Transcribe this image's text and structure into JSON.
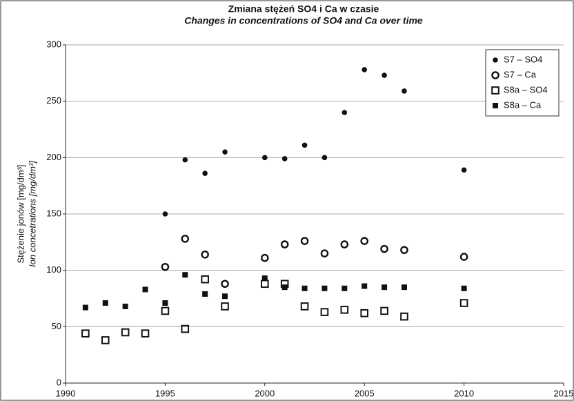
{
  "chart_data": {
    "type": "scatter",
    "title": "Zmiana stężeń SO4 i Ca w czasie",
    "subtitle": "Changes in concentrations of SO4 and Ca over time",
    "ylabel": "Stężenie jonów [mg/dm³]",
    "ylabel2": "Ion concetrations [mg/dm³]",
    "xlim": [
      1990,
      2015
    ],
    "xticks": [
      1990,
      1995,
      2000,
      2005,
      2010,
      2015
    ],
    "ylim": [
      0,
      300
    ],
    "yticks": [
      0,
      50,
      100,
      150,
      200,
      250,
      300
    ],
    "grid": true,
    "legend": "top-right",
    "series": [
      {
        "name": "S7 – SO4",
        "marker": "circle-filled",
        "color": "#111",
        "x": [
          1995,
          1996,
          1997,
          1998,
          2000,
          2001,
          2002,
          2003,
          2004,
          2005,
          2006,
          2007,
          2010
        ],
        "values": [
          150,
          198,
          186,
          205,
          200,
          199,
          211,
          200,
          240,
          278,
          273,
          259,
          189
        ]
      },
      {
        "name": "S7 – Ca",
        "marker": "circle-open",
        "color": "#111",
        "x": [
          1995,
          1996,
          1997,
          1998,
          2000,
          2001,
          2002,
          2003,
          2004,
          2005,
          2006,
          2007,
          2010
        ],
        "values": [
          103,
          128,
          114,
          88,
          111,
          123,
          126,
          115,
          123,
          126,
          119,
          118,
          112
        ]
      },
      {
        "name": "S8a – SO4",
        "marker": "square-open",
        "color": "#111",
        "x": [
          1991,
          1992,
          1993,
          1994,
          1995,
          1996,
          1997,
          1998,
          2000,
          2001,
          2002,
          2003,
          2004,
          2005,
          2006,
          2007,
          2010
        ],
        "values": [
          44,
          38,
          45,
          44,
          64,
          48,
          92,
          68,
          88,
          88,
          68,
          63,
          65,
          62,
          64,
          59,
          71
        ]
      },
      {
        "name": "S8a – Ca",
        "marker": "square-filled",
        "color": "#111",
        "x": [
          1991,
          1992,
          1993,
          1994,
          1995,
          1996,
          1997,
          1998,
          2000,
          2001,
          2002,
          2003,
          2004,
          2005,
          2006,
          2007,
          2010
        ],
        "values": [
          67,
          71,
          68,
          83,
          71,
          96,
          79,
          77,
          93,
          85,
          84,
          84,
          84,
          86,
          85,
          85,
          84
        ]
      }
    ]
  }
}
